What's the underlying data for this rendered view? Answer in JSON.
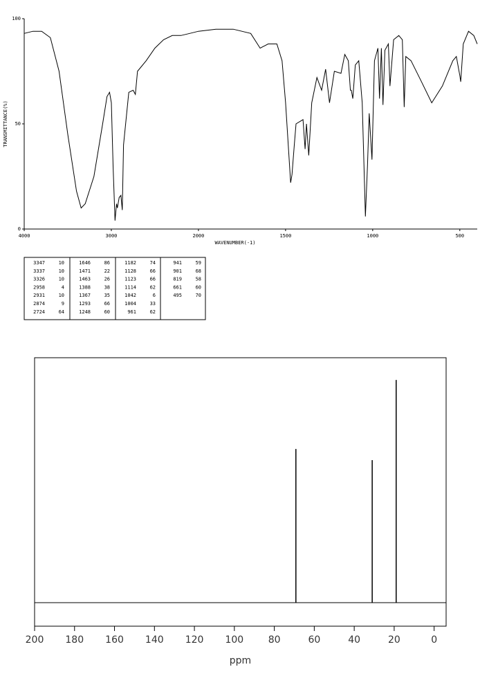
{
  "chart_data": [
    {
      "type": "line",
      "x_label": "WAVENUMBER(-1)",
      "y_label": "TRANSMITTANCE(%)",
      "color": "#000000",
      "x": [
        4000,
        3900,
        3800,
        3700,
        3600,
        3500,
        3400,
        3347,
        3300,
        3200,
        3100,
        3050,
        3020,
        3000,
        2980,
        2958,
        2940,
        2931,
        2910,
        2890,
        2874,
        2860,
        2800,
        2750,
        2724,
        2700,
        2600,
        2500,
        2400,
        2300,
        2200,
        2100,
        2000,
        1900,
        1800,
        1700,
        1646,
        1600,
        1550,
        1520,
        1500,
        1471,
        1463,
        1450,
        1440,
        1400,
        1388,
        1380,
        1367,
        1350,
        1320,
        1293,
        1270,
        1248,
        1220,
        1182,
        1160,
        1140,
        1128,
        1123,
        1114,
        1100,
        1080,
        1060,
        1042,
        1030,
        1020,
        1004,
        990,
        970,
        961,
        950,
        941,
        930,
        910,
        901,
        880,
        850,
        830,
        819,
        810,
        780,
        720,
        661,
        600,
        540,
        520,
        500,
        495,
        480,
        450,
        420,
        400
      ],
      "values": [
        93,
        94,
        94,
        91,
        75,
        45,
        18,
        10,
        12,
        25,
        50,
        63,
        65,
        60,
        30,
        4,
        12,
        10,
        15,
        16,
        9,
        40,
        65,
        66,
        64,
        75,
        80,
        86,
        90,
        92,
        92,
        93,
        94,
        95,
        95,
        93,
        86,
        88,
        88,
        80,
        60,
        22,
        26,
        40,
        50,
        52,
        38,
        50,
        35,
        60,
        72,
        66,
        76,
        60,
        75,
        74,
        83,
        80,
        66,
        66,
        62,
        78,
        80,
        60,
        6,
        30,
        55,
        33,
        80,
        86,
        62,
        86,
        59,
        85,
        88,
        68,
        90,
        92,
        90,
        58,
        82,
        80,
        70,
        60,
        68,
        80,
        82,
        73,
        70,
        88,
        94,
        92,
        88
      ],
      "xlim": [
        4000,
        400
      ],
      "ylim": [
        0,
        100
      ],
      "xticks": [
        4000,
        3000,
        2000,
        1500,
        1000,
        500
      ],
      "yticks": [
        0,
        50,
        100
      ]
    },
    {
      "type": "stick",
      "x_label": "ppm",
      "color": "#000000",
      "x": [
        69.2,
        31.0,
        19.0
      ],
      "values": [
        69,
        64,
        100
      ],
      "xlim": [
        200,
        -6
      ],
      "ylim": [
        -10.6,
        110
      ],
      "xticks": [
        200,
        180,
        160,
        140,
        120,
        100,
        80,
        60,
        40,
        20,
        0
      ]
    }
  ],
  "peak_table": {
    "columns": [
      [
        [
          3347,
          10
        ],
        [
          3337,
          10
        ],
        [
          3326,
          10
        ],
        [
          2958,
          4
        ],
        [
          2931,
          10
        ],
        [
          2874,
          9
        ],
        [
          2724,
          64
        ]
      ],
      [
        [
          1646,
          86
        ],
        [
          1471,
          22
        ],
        [
          1463,
          26
        ],
        [
          1388,
          38
        ],
        [
          1367,
          35
        ],
        [
          1293,
          66
        ],
        [
          1248,
          60
        ]
      ],
      [
        [
          1182,
          74
        ],
        [
          1128,
          66
        ],
        [
          1123,
          66
        ],
        [
          1114,
          62
        ],
        [
          1042,
          6
        ],
        [
          1004,
          33
        ],
        [
          961,
          62
        ]
      ],
      [
        [
          941,
          59
        ],
        [
          901,
          68
        ],
        [
          819,
          58
        ],
        [
          661,
          60
        ],
        [
          495,
          70
        ]
      ]
    ]
  }
}
